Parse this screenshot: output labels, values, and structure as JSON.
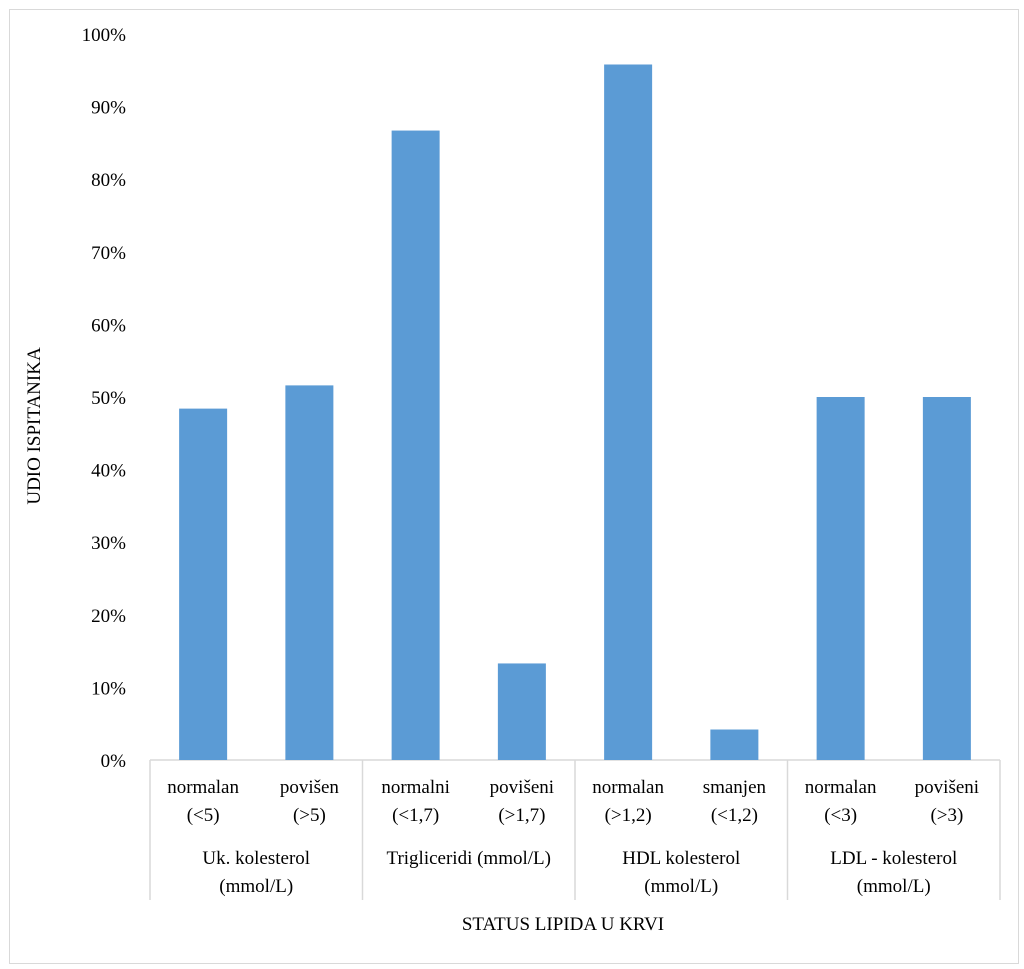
{
  "chart_data": {
    "type": "bar",
    "xlabel": "STATUS LIPIDA U KRVI",
    "ylabel": "UDIO ISPITANIKA",
    "ylim": [
      0,
      100
    ],
    "yticks": [
      "0%",
      "10%",
      "20%",
      "30%",
      "40%",
      "50%",
      "60%",
      "70%",
      "80%",
      "90%",
      "100%"
    ],
    "grid": false,
    "groups": [
      {
        "label_lines": [
          "Uk. kolesterol",
          "(mmol/L)"
        ]
      },
      {
        "label_lines": [
          "Trigliceridi (mmol/L)"
        ]
      },
      {
        "label_lines": [
          "HDL kolesterol",
          "(mmol/L)"
        ]
      },
      {
        "label_lines": [
          "LDL - kolesterol",
          "(mmol/L)"
        ]
      }
    ],
    "categories": [
      {
        "group": 0,
        "label_lines": [
          "normalan",
          "(<5)"
        ],
        "value": 48.4
      },
      {
        "group": 0,
        "label_lines": [
          "povišen",
          "(>5)"
        ],
        "value": 51.6
      },
      {
        "group": 1,
        "label_lines": [
          "normalni",
          "(<1,7)"
        ],
        "value": 86.7
      },
      {
        "group": 1,
        "label_lines": [
          "povišeni",
          "(>1,7)"
        ],
        "value": 13.3
      },
      {
        "group": 2,
        "label_lines": [
          "normalan",
          "(>1,2)"
        ],
        "value": 95.8
      },
      {
        "group": 2,
        "label_lines": [
          "smanjen",
          "(<1,2)"
        ],
        "value": 4.2
      },
      {
        "group": 3,
        "label_lines": [
          "normalan",
          "(<3)"
        ],
        "value": 50.0
      },
      {
        "group": 3,
        "label_lines": [
          "povišeni",
          "(>3)"
        ],
        "value": 50.0
      }
    ],
    "colors": {
      "bar": "#5b9bd5",
      "axis": "#d9d9d9"
    }
  }
}
